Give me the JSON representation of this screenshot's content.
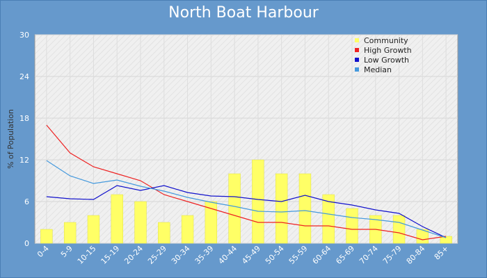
{
  "chart_data": {
    "type": "bar",
    "title": "North Boat Harbour",
    "ylabel": "% of Population",
    "xlabel": "",
    "ylim": [
      0,
      30
    ],
    "yticks": [
      0,
      6,
      12,
      18,
      24,
      30
    ],
    "grid": true,
    "legend_position": "top-right",
    "categories": [
      "0-4",
      "5-9",
      "10-15",
      "15-19",
      "20-24",
      "25-29",
      "30-34",
      "35-39",
      "40-44",
      "45-49",
      "50-54",
      "55-59",
      "60-64",
      "65-69",
      "70-74",
      "75-79",
      "80-84",
      "85+"
    ],
    "series": [
      {
        "name": "Community",
        "kind": "bar",
        "color": "#ffff66",
        "values": [
          2,
          3,
          4,
          7,
          6,
          3,
          4,
          6,
          10,
          12,
          10,
          10,
          7,
          5,
          4,
          4,
          2,
          1
        ]
      },
      {
        "name": "High Growth",
        "kind": "line",
        "color": "#ee2222",
        "values": [
          17,
          13,
          11,
          10,
          9,
          7,
          6,
          5,
          4,
          3,
          3,
          2.5,
          2.5,
          2,
          2,
          1.5,
          0.5,
          1
        ]
      },
      {
        "name": "Low Growth",
        "kind": "line",
        "color": "#1111cc",
        "values": [
          6.7,
          6.4,
          6.3,
          8.3,
          7.6,
          8.3,
          7.3,
          6.8,
          6.7,
          6.3,
          6.0,
          6.9,
          6.0,
          5.5,
          4.8,
          4.3,
          2.4,
          0.8
        ]
      },
      {
        "name": "Median",
        "kind": "line",
        "color": "#4499dd",
        "values": [
          11.9,
          9.7,
          8.6,
          9.1,
          8.2,
          7.5,
          6.6,
          5.9,
          5.3,
          4.6,
          4.5,
          4.7,
          4.2,
          3.7,
          3.4,
          3.0,
          1.9,
          0.8
        ]
      }
    ]
  }
}
